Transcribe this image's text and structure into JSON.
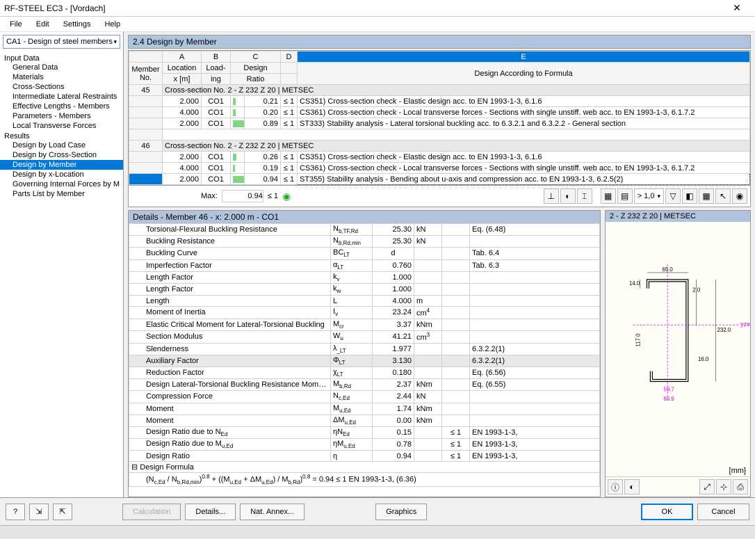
{
  "window": {
    "title": "RF-STEEL EC3 - [Vordach]"
  },
  "menu": [
    "File",
    "Edit",
    "Settings",
    "Help"
  ],
  "nav_dropdown": "CA1 - Design of steel members",
  "tree": {
    "input_label": "Input Data",
    "input_items": [
      "General Data",
      "Materials",
      "Cross-Sections",
      "Intermediate Lateral Restraints",
      "Effective Lengths - Members",
      "Parameters - Members",
      "Local Transverse Forces"
    ],
    "results_label": "Results",
    "results_items": [
      "Design by Load Case",
      "Design by Cross-Section",
      "Design by Member",
      "Design by x-Location",
      "Governing Internal Forces by M",
      "Parts List by Member"
    ],
    "selected": "Design by Member"
  },
  "main_header": "2.4 Design by Member",
  "table": {
    "col_letters": [
      "A",
      "B",
      "C",
      "D",
      "E"
    ],
    "headers_row1": [
      "Member",
      "Location",
      "Load-",
      "Design",
      ""
    ],
    "headers_row2": [
      "No.",
      "x [m]",
      "ing",
      "Ratio",
      "Design According to Formula"
    ],
    "groups": [
      {
        "member_no": "45",
        "group_title": "Cross-section No.  2 - Z 232 Z 20 | METSEC",
        "rows": [
          {
            "x": "2.000",
            "loading": "CO1",
            "ratio": "0.21",
            "bar_pct": 21,
            "check": "≤ 1",
            "desc": "CS351) Cross-section check - Elastic design acc. to EN 1993-1-3, 6.1.6"
          },
          {
            "x": "4.000",
            "loading": "CO1",
            "ratio": "0.20",
            "bar_pct": 20,
            "check": "≤ 1",
            "desc": "CS361) Cross-section check - Local transverse forces - Sections with single unstiff. web acc. to EN 1993-1-3, 6.1.7.2"
          },
          {
            "x": "2.000",
            "loading": "CO1",
            "ratio": "0.89",
            "bar_pct": 89,
            "check": "≤ 1",
            "desc": "ST333) Stability analysis - Lateral torsional buckling acc. to 6.3.2.1 and 6.3.2.2 - General section"
          }
        ]
      },
      {
        "member_no": "46",
        "group_title": "Cross-section No.  2 - Z 232 Z 20 | METSEC",
        "rows": [
          {
            "x": "2.000",
            "loading": "CO1",
            "ratio": "0.26",
            "bar_pct": 26,
            "check": "≤ 1",
            "desc": "CS351) Cross-section check - Elastic design acc. to EN 1993-1-3, 6.1.6"
          },
          {
            "x": "4.000",
            "loading": "CO1",
            "ratio": "0.19",
            "bar_pct": 19,
            "check": "≤ 1",
            "desc": "CS361) Cross-section check - Local transverse forces - Sections with single unstiff. web acc. to EN 1993-1-3, 6.1.7.2"
          },
          {
            "x": "2.000",
            "loading": "CO1",
            "ratio": "0.94",
            "bar_pct": 94,
            "check": "≤ 1",
            "desc": "ST355) Stability analysis - Bending about u-axis and compression acc. to EN 1993-1-3, 6.2.5(2)",
            "selected": true
          }
        ]
      }
    ]
  },
  "maxrow": {
    "label": "Max:",
    "value": "0.94",
    "check": "≤ 1",
    "combo_value": "> 1,0"
  },
  "details": {
    "header": "Details - Member 46 - x: 2.000 m - CO1",
    "rows": [
      {
        "name": "Torsional-Flexural Buckling Resistance",
        "sym_html": "N<sub>b,TF,Rd</sub>",
        "val": "25.30",
        "unit": "kN",
        "check": "",
        "ref": "Eq. (6.48)"
      },
      {
        "name": "Buckling Resistance",
        "sym_html": "N<sub>b,Rd,min</sub>",
        "val": "25.30",
        "unit": "kN",
        "check": "",
        "ref": ""
      },
      {
        "name": "Buckling Curve",
        "sym_html": "BC<sub>LT</sub>",
        "val": "d",
        "unit": "",
        "check": "",
        "ref": "Tab. 6.4",
        "val_align": "cent"
      },
      {
        "name": "Imperfection Factor",
        "sym_html": "α<sub>LT</sub>",
        "val": "0.760",
        "unit": "",
        "check": "",
        "ref": "Tab. 6.3"
      },
      {
        "name": "Length Factor",
        "sym_html": "k<sub>v</sub>",
        "val": "1.000",
        "unit": "",
        "check": "",
        "ref": ""
      },
      {
        "name": "Length Factor",
        "sym_html": "k<sub>w</sub>",
        "val": "1.000",
        "unit": "",
        "check": "",
        "ref": ""
      },
      {
        "name": "Length",
        "sym_html": "L",
        "val": "4.000",
        "unit": "m",
        "check": "",
        "ref": ""
      },
      {
        "name": "Moment of Inertia",
        "sym_html": "I<sub>v</sub>",
        "val": "23.24",
        "unit_html": "cm<sup>4</sup>",
        "check": "",
        "ref": ""
      },
      {
        "name": "Elastic Critical Moment for Lateral-Torsional Buckling",
        "sym_html": "M<sub>cr</sub>",
        "val": "3.37",
        "unit": "kNm",
        "check": "",
        "ref": ""
      },
      {
        "name": "Section Modulus",
        "sym_html": "W<sub>u</sub>",
        "val": "41.21",
        "unit_html": "cm<sup>3</sup>",
        "check": "",
        "ref": ""
      },
      {
        "name": "Slenderness",
        "sym_html": "λ<sub>_LT</sub>",
        "val": "1.977",
        "unit": "",
        "check": "",
        "ref": "6.3.2.2(1)"
      },
      {
        "name": "Auxiliary Factor",
        "sym_html": "Φ<sub>LT</sub>",
        "val": "3.130",
        "unit": "",
        "check": "",
        "ref": "6.3.2.2(1)",
        "hl": true
      },
      {
        "name": "Reduction Factor",
        "sym_html": "χ<sub>LT</sub>",
        "val": "0.180",
        "unit": "",
        "check": "",
        "ref": "Eq. (6.56)"
      },
      {
        "name": "Design Lateral-Torsional Buckling Resistance Moment",
        "sym_html": "M<sub>b,Rd</sub>",
        "val": "2.37",
        "unit": "kNm",
        "check": "",
        "ref": "Eq. (6.55)"
      },
      {
        "name": "Compression Force",
        "sym_html": "N<sub>c,Ed</sub>",
        "val": "2.44",
        "unit": "kN",
        "check": "",
        "ref": ""
      },
      {
        "name": "Moment",
        "sym_html": "M<sub>u,Ed</sub>",
        "val": "1.74",
        "unit": "kNm",
        "check": "",
        "ref": ""
      },
      {
        "name": "Moment",
        "sym_html": "ΔM<sub>u,Ed</sub>",
        "val": "0.00",
        "unit": "kNm",
        "check": "",
        "ref": ""
      },
      {
        "name": "Design Ratio due to N<sub>Ed</sub>",
        "sym_html": "ηN<sub>Ed</sub>",
        "val": "0.15",
        "unit": "",
        "check": "≤ 1",
        "ref": "EN 1993-1-3,"
      },
      {
        "name": "Design Ratio due to M<sub>u,Ed</sub>",
        "sym_html": "ηM<sub>u,Ed</sub>",
        "val": "0.78",
        "unit": "",
        "check": "≤ 1",
        "ref": "EN 1993-1-3,"
      },
      {
        "name": "Design Ratio",
        "sym_html": "η",
        "val": "0.94",
        "unit": "",
        "check": "≤ 1",
        "ref": "EN 1993-1-3,"
      }
    ],
    "formula_label": "Design Formula",
    "formula_html": "(N<sub>c,Ed</sub> / N<sub>b,Rd,min</sub>)<sup>0.8</sup> + ((M<sub>u,Ed</sub> + ΔM<sub>u,Ed</sub>) / M<sub>b,Rd</sub>)<sup>0.8</sup> = 0.94 ≤ 1   EN 1993-1-3, (6.36)"
  },
  "preview": {
    "header": "2 - Z 232 Z 20 | METSEC",
    "unit": "[mm]",
    "dims": {
      "top_flange": "65.0",
      "top_lip": "14.0",
      "thickness": "2.0",
      "bot_flange": "59.7",
      "bot_lip": "16.0",
      "web_upper": "117.0",
      "total_h": "232.0",
      "bot_dim": "60.9",
      "axis": "yzeff"
    }
  },
  "bottom": {
    "calculation": "Calculation",
    "details": "Details...",
    "nat_annex": "Nat. Annex...",
    "graphics": "Graphics",
    "ok": "OK",
    "cancel": "Cancel"
  }
}
